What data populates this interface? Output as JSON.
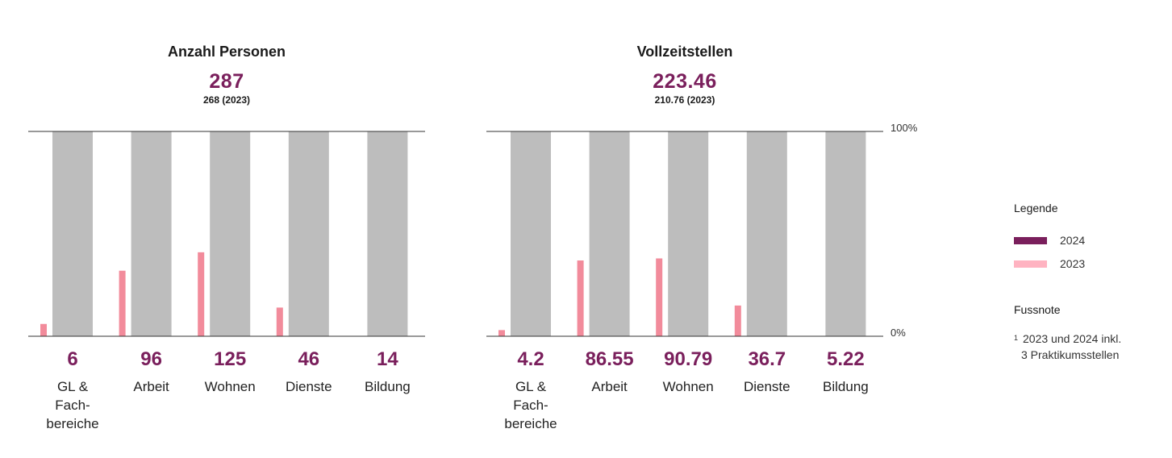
{
  "chart_data": [
    {
      "type": "bar",
      "title": "Anzahl Personen",
      "total": "287",
      "total_prev": "268 (2023)",
      "categories": [
        "GL & Fach-bereiche",
        "Arbeit",
        "Wohnen",
        "Dienste",
        "Bildung"
      ],
      "category_labels": [
        [
          "GL &",
          "Fach-",
          "bereiche"
        ],
        [
          "Arbeit"
        ],
        [
          "Wohnen"
        ],
        [
          "Dienste"
        ],
        [
          "Bildung"
        ]
      ],
      "value_labels": [
        "6",
        "96",
        "125",
        "46",
        "14"
      ],
      "series": [
        {
          "name": "2024",
          "values": [
            100,
            100,
            100,
            100,
            100
          ]
        },
        {
          "name": "2023",
          "values": [
            6,
            32,
            41,
            14,
            0
          ]
        }
      ],
      "ylim": [
        0,
        100
      ]
    },
    {
      "type": "bar",
      "title": "Vollzeitstellen",
      "total": "223.46",
      "total_prev": "210.76 (2023)",
      "categories": [
        "GL & Fach-bereiche",
        "Arbeit",
        "Wohnen",
        "Dienste",
        "Bildung"
      ],
      "category_labels": [
        [
          "GL &",
          "Fach-",
          "bereiche"
        ],
        [
          "Arbeit"
        ],
        [
          "Wohnen"
        ],
        [
          "Dienste"
        ],
        [
          "Bildung"
        ]
      ],
      "value_labels": [
        "4.2",
        "86.55",
        "90.79",
        "36.7",
        "5.22"
      ],
      "series": [
        {
          "name": "2024",
          "values": [
            100,
            100,
            100,
            100,
            100
          ]
        },
        {
          "name": "2023",
          "values": [
            3,
            37,
            38,
            15,
            0
          ]
        }
      ],
      "ylim": [
        0,
        100
      ],
      "axis_labels": {
        "top": "100%",
        "bottom": "0%"
      }
    }
  ],
  "colors": {
    "bar_2024": "#bdbdbd",
    "bar_2023": "#f28b9b",
    "accent": "#7a1f5c",
    "legend_2024": "#7a1f5c",
    "legend_2023": "#ffb3c1",
    "axis": "#333333"
  },
  "legend": {
    "title": "Legende",
    "items": [
      {
        "label": "2024"
      },
      {
        "label": "2023"
      }
    ]
  },
  "footnote": {
    "title": "Fussnote",
    "marker": "1",
    "text_line1": "2023 und 2024 inkl.",
    "text_line2": "3 Praktikumsstellen"
  }
}
